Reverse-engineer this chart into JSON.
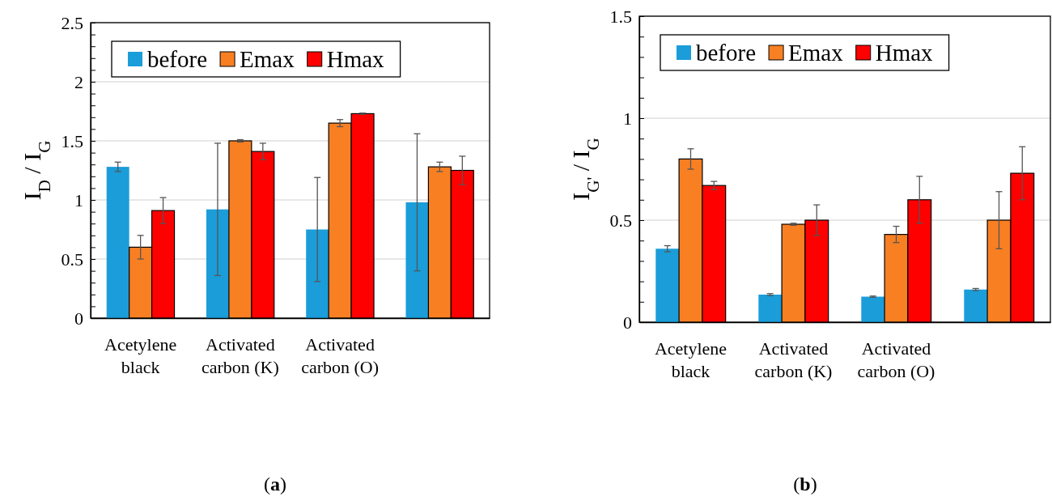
{
  "chart_data": [
    {
      "type": "bar",
      "title": "(a)",
      "ylabel": "I$_{D}$ / I$_{G}$",
      "categories": [
        "Acetylene black",
        "Activated carbon (K)",
        "Activated carbon (O)",
        null
      ],
      "series": [
        {
          "name": "before",
          "color": "#1a9dd9",
          "values": [
            1.28,
            0.92,
            0.75,
            0.98
          ],
          "errors": [
            0.04,
            0.56,
            0.44,
            0.58
          ]
        },
        {
          "name": "Emax",
          "color": "#f97f23",
          "values": [
            0.6,
            1.5,
            1.65,
            1.28
          ],
          "errors": [
            0.1,
            0.01,
            0.03,
            0.04
          ]
        },
        {
          "name": "Hmax",
          "color": "#ff0000",
          "values": [
            0.91,
            1.41,
            1.73,
            1.25
          ],
          "errors": [
            0.11,
            0.07,
            0.005,
            0.12
          ]
        }
      ],
      "ylim": [
        0,
        2.5
      ],
      "yticks": [
        0,
        {
          "value": 0.1,
          "label": null
        },
        {
          "value": 0.2,
          "label": null
        },
        {
          "value": 0.3,
          "label": null
        },
        {
          "value": 0.4,
          "label": null
        },
        0.5,
        {
          "value": 0.6,
          "label": null
        },
        {
          "value": 0.7,
          "label": null
        },
        {
          "value": 0.8,
          "label": null
        },
        {
          "value": 0.9,
          "label": null
        },
        1,
        {
          "value": 1.1,
          "label": null
        },
        {
          "value": 1.2,
          "label": null
        },
        {
          "value": 1.3,
          "label": null
        },
        {
          "value": 1.4,
          "label": null
        },
        1.5,
        {
          "value": 1.6,
          "label": null
        },
        {
          "value": 1.7,
          "label": null
        },
        {
          "value": 1.8,
          "label": null
        },
        {
          "value": 1.9,
          "label": null
        },
        2,
        {
          "value": 2.1,
          "label": null
        },
        {
          "value": 2.2,
          "label": null
        },
        {
          "value": 2.3,
          "label": null
        },
        {
          "value": 2.4,
          "label": null
        },
        2.5
      ],
      "grid": "y",
      "legend": "top"
    },
    {
      "type": "bar",
      "title": "(b)",
      "ylabel": "I$_{G'}$ / I$_{G}$",
      "categories": [
        "Acetylene black",
        "Activated carbon (K)",
        "Activated carbon (O)",
        null
      ],
      "series": [
        {
          "name": "before",
          "color": "#1a9dd9",
          "values": [
            0.36,
            0.135,
            0.125,
            0.16
          ],
          "errors": [
            0.015,
            0.005,
            0.003,
            0.005
          ]
        },
        {
          "name": "Emax",
          "color": "#f97f23",
          "values": [
            0.8,
            0.48,
            0.43,
            0.5
          ],
          "errors": [
            0.05,
            0.005,
            0.04,
            0.14
          ]
        },
        {
          "name": "Hmax",
          "color": "#ff0000",
          "values": [
            0.67,
            0.5,
            0.6,
            0.73
          ],
          "errors": [
            0.02,
            0.075,
            0.115,
            0.13
          ]
        }
      ],
      "ylim": [
        0,
        1.5
      ],
      "yticks": [
        0,
        {
          "value": 0.1,
          "label": null
        },
        {
          "value": 0.2,
          "label": null
        },
        {
          "value": 0.3,
          "label": null
        },
        {
          "value": 0.4,
          "label": null
        },
        0.5,
        {
          "value": 0.6,
          "label": null
        },
        {
          "value": 0.7,
          "label": null
        },
        {
          "value": 0.8,
          "label": null
        },
        {
          "value": 0.9,
          "label": null
        },
        1,
        {
          "value": 1.1,
          "label": null
        },
        {
          "value": 1.2,
          "label": null
        },
        {
          "value": 1.3,
          "label": null
        },
        {
          "value": 1.4,
          "label": null
        },
        1.5
      ],
      "grid": "y",
      "legend": "top"
    }
  ]
}
